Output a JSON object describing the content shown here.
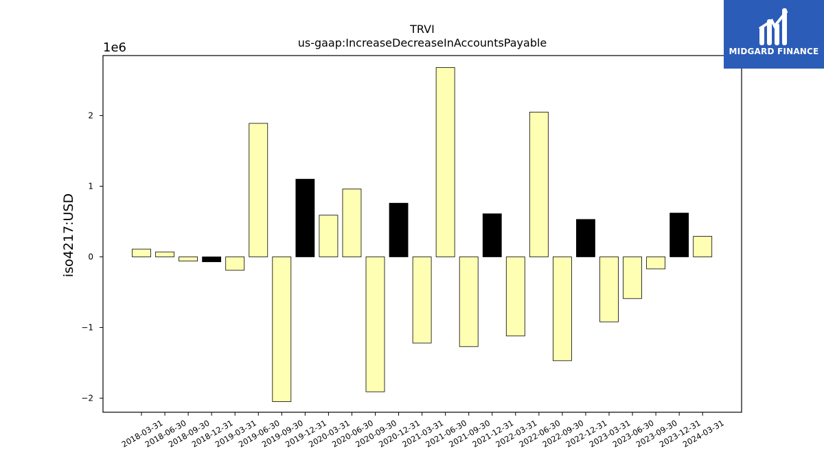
{
  "brand": {
    "name": "MIDGARD FINANCE",
    "color": "#2b5cb8"
  },
  "chart_data": {
    "type": "bar",
    "title": "TRVI",
    "subtitle": "us-gaap:IncreaseDecreaseInAccountsPayable",
    "ylabel": "iso4217:USD",
    "xlabel": "",
    "scale_label": "1e6",
    "ylim": [
      -2.2,
      2.85
    ],
    "yticks": [
      {
        "value": 2,
        "label": "2"
      },
      {
        "value": 1,
        "label": "1"
      },
      {
        "value": 0,
        "label": "0"
      },
      {
        "value": -1,
        "label": "−1"
      },
      {
        "value": -2,
        "label": "−2"
      }
    ],
    "categories": [
      "2018-03-31",
      "2018-06-30",
      "2018-09-30",
      "2018-12-31",
      "2019-03-31",
      "2019-06-30",
      "2019-09-30",
      "2019-12-31",
      "2020-03-31",
      "2020-06-30",
      "2020-09-30",
      "2020-12-31",
      "2021-03-31",
      "2021-06-30",
      "2021-09-30",
      "2021-12-31",
      "2022-03-31",
      "2022-06-30",
      "2022-09-30",
      "2022-12-31",
      "2023-03-31",
      "2023-06-30",
      "2023-09-30",
      "2023-12-31",
      "2024-03-31"
    ],
    "values": [
      0.11,
      0.07,
      -0.06,
      -0.07,
      -0.19,
      1.89,
      -2.05,
      1.1,
      0.59,
      0.96,
      -1.91,
      0.76,
      -1.22,
      2.68,
      -1.27,
      0.61,
      -1.12,
      2.05,
      -1.47,
      0.53,
      -0.92,
      -0.59,
      -0.17,
      0.62,
      0.29
    ],
    "highlight": [
      false,
      false,
      false,
      true,
      false,
      false,
      false,
      true,
      false,
      false,
      false,
      true,
      false,
      false,
      false,
      true,
      false,
      false,
      false,
      true,
      false,
      false,
      false,
      true,
      false
    ],
    "colors": {
      "default": "#ffffb3",
      "highlight": "#000000",
      "edge": "#000000"
    },
    "grid": false,
    "legend": "none"
  }
}
